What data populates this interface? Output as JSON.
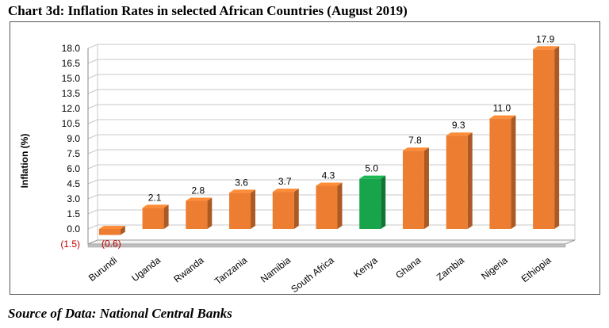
{
  "title": "Chart 3d: Inflation Rates in selected African Countries (August 2019)",
  "source": "Source of Data: National Central Banks",
  "colors": {
    "bar": "#ED7D31",
    "highlight": "#17A44A",
    "grid": "#c8c8c8"
  },
  "chart_data": {
    "type": "bar",
    "title": "",
    "xlabel": "",
    "ylabel": "Inflation (%)",
    "ylim": [
      -1.5,
      18.0
    ],
    "yticks": [
      -1.5,
      0.0,
      1.5,
      3.0,
      4.5,
      6.0,
      7.5,
      9.0,
      10.5,
      12.0,
      13.5,
      15.0,
      16.5,
      18.0
    ],
    "ytick_labels": [
      "(1.5)",
      "0.0",
      "1.5",
      "3.0",
      "4.5",
      "6.0",
      "7.5",
      "9.0",
      "10.5",
      "12.0",
      "13.5",
      "15.0",
      "16.5",
      "18.0"
    ],
    "categories": [
      "Burundi",
      "Uganda",
      "Rwanda",
      "Tanzania",
      "Namibia",
      "South Africa",
      "Kenya",
      "Ghana",
      "Zambia",
      "Nigeria",
      "Ethiopia"
    ],
    "values": [
      -0.6,
      2.1,
      2.8,
      3.6,
      3.7,
      4.3,
      5.0,
      7.8,
      9.3,
      11.0,
      17.9
    ],
    "data_labels": [
      "(0.6)",
      "2.1",
      "2.8",
      "3.6",
      "3.7",
      "4.3",
      "5.0",
      "7.8",
      "9.3",
      "11.0",
      "17.9"
    ],
    "highlight": "Kenya",
    "grid": true,
    "legend": "none"
  }
}
